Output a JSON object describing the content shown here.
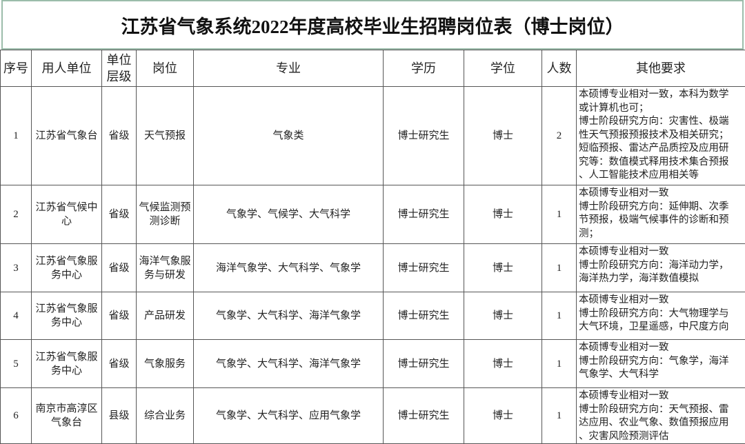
{
  "header": {
    "title": "江苏省气象系统2022年度高校毕业生招聘岗位表（博士岗位）"
  },
  "table": {
    "columns": [
      "序号",
      "用人单位",
      "单位层级",
      "岗位",
      "专业",
      "学历",
      "学位",
      "人数",
      "其他要求"
    ],
    "rows": [
      [
        1,
        "江苏省气象台",
        "省级",
        "天气预报",
        "气象类",
        "博士研究生",
        "博士",
        2,
        [
          "本硕博专业相对一致，本科为数学",
          "或计算机也可；",
          "博士阶段研究方向：灾害性、极端",
          "性天气预报预报技术及相关研究；",
          "短临预报、雷达产品质控及应用研",
          "究等：数值模式释用技术集合预报",
          "、人工智能技术应用相关等"
        ]
      ],
      [
        2,
        "江苏省气候中心",
        "省级",
        "气候监测预测诊断",
        "气象学、气候学、大气科学",
        "博士研究生",
        "博士",
        1,
        [
          "本硕博专业相对一致",
          "博士阶段研究方向：延伸期、次季",
          "节预报，极端气候事件的诊断和预",
          "测；"
        ]
      ],
      [
        3,
        "江苏省气象服务中心",
        "省级",
        "海洋气象服务与研发",
        "海洋气象学、大气科学、气象学",
        "博士研究生",
        "博士",
        1,
        [
          "本硕博专业相对一致",
          "博士阶段研究方向：海洋动力学，",
          "海洋热力学，海洋数值模拟"
        ]
      ],
      [
        4,
        "江苏省气象服务中心",
        "省级",
        "产品研发",
        "气象学、大气科学、海洋气象学",
        "博士研究生",
        "博士",
        1,
        [
          "本硕博专业相对一致",
          "博士阶段研究方向：大气物理学与",
          "大气环境，卫星遥感，中尺度方向"
        ]
      ],
      [
        5,
        "江苏省气象服务中心",
        "省级",
        "气象服务",
        "气象学、大气科学、海洋气象学",
        "博士研究生",
        "博士",
        1,
        [
          "本硕博专业相对一致",
          "博士阶段研究方向：气象学，海洋",
          "气象学、大气科学"
        ]
      ],
      [
        6,
        "南京市高淳区气象台",
        "县级",
        "综合业务",
        "气象学、大气科学、应用气象学",
        "博士研究生",
        "博士",
        1,
        [
          "本硕博专业相对一致",
          "博士阶段研究方向：天气预报、雷",
          "达应用、农业气象、数值预报应用",
          "、灾害风险预测评估"
        ]
      ]
    ]
  }
}
